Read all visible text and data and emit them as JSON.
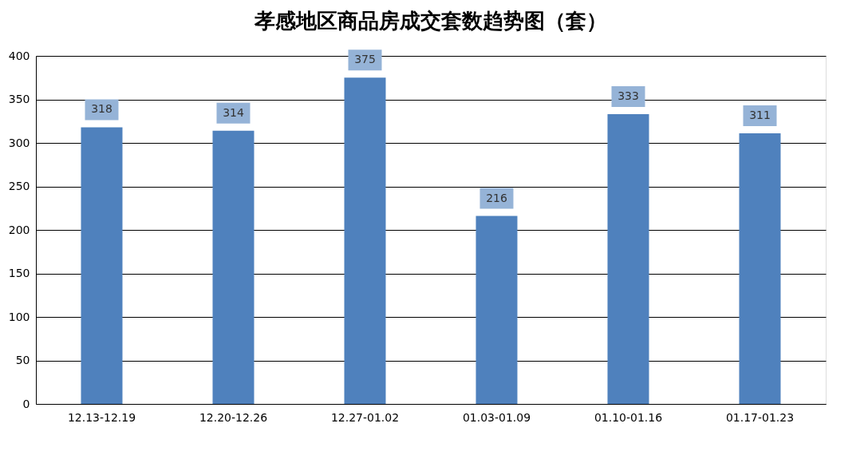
{
  "chart_data": {
    "type": "bar",
    "title": "孝感地区商品房成交套数趋势图（套）",
    "categories": [
      "12.13-12.19",
      "12.20-12.26",
      "12.27-01.02",
      "01.03-01.09",
      "01.10-01.16",
      "01.17-01.23"
    ],
    "values": [
      318,
      314,
      375,
      216,
      333,
      311
    ],
    "color": "#4f81bd",
    "ylim": [
      0,
      400
    ],
    "yticks": [
      0,
      50,
      100,
      150,
      200,
      250,
      300,
      350,
      400
    ],
    "grid": "y",
    "data_labels": true
  }
}
